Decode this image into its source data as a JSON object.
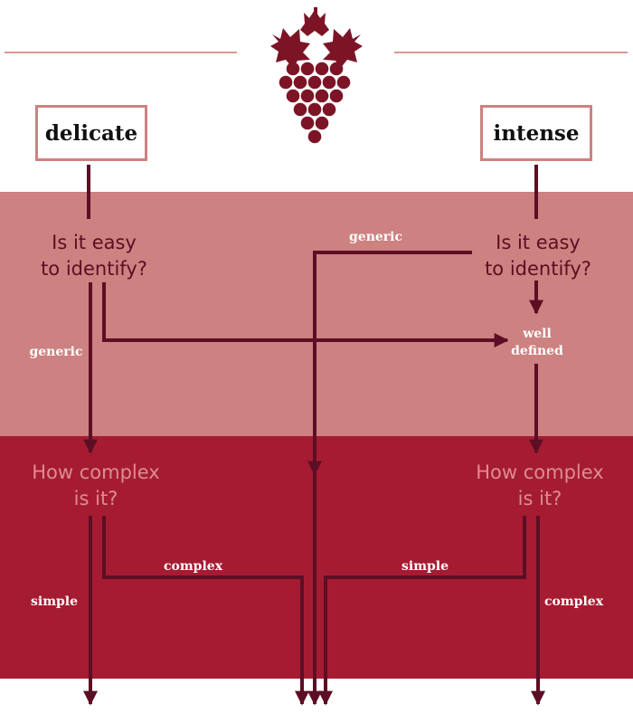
{
  "diagram": {
    "categories": {
      "left": "delicate",
      "right": "intense"
    },
    "question_identify": [
      "Is it easy",
      "to identify?"
    ],
    "question_complexity": [
      "How complex",
      "is it?"
    ],
    "answers": {
      "generic_left": "generic",
      "generic_center": "generic",
      "well_defined": [
        "well",
        "defined"
      ],
      "complex_left": "complex",
      "simple_left": "simple",
      "simple_right": "simple",
      "complex_right": "complex"
    }
  },
  "colors": {
    "arrow": "#5c0f24",
    "band_mid": "#cd8181",
    "band_low": "#a51c32",
    "box_border": "#cd8181",
    "rule": "#d49a8e",
    "grape": "#7d1426"
  },
  "icons": {
    "logo": "grape-cluster-icon"
  }
}
